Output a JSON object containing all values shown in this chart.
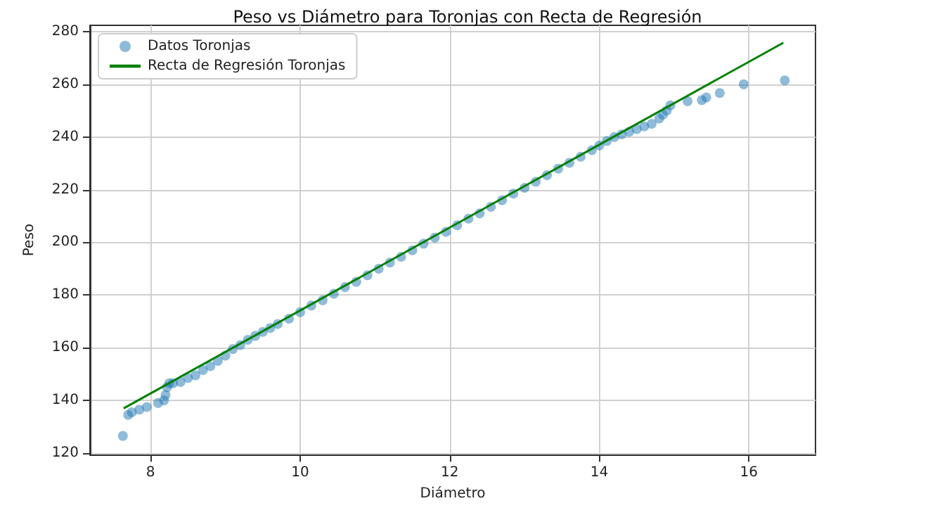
{
  "chart_data": {
    "type": "scatter",
    "title": "Peso vs Diámetro para Toronjas con Recta de Regresión",
    "xlabel": "Diámetro",
    "ylabel": "Peso",
    "series": [
      {
        "name": "Datos Toronjas",
        "color": "#1f77b4",
        "marker": "circle",
        "x": [
          7.63,
          7.7,
          7.75,
          7.85,
          7.95,
          8.1,
          8.18,
          8.2,
          8.22,
          8.25,
          8.3,
          8.4,
          8.5,
          8.6,
          8.7,
          8.8,
          8.9,
          9.0,
          9.1,
          9.2,
          9.3,
          9.4,
          9.5,
          9.6,
          9.7,
          9.85,
          10.0,
          10.15,
          10.3,
          10.45,
          10.6,
          10.75,
          10.9,
          11.05,
          11.2,
          11.35,
          11.5,
          11.65,
          11.8,
          11.95,
          12.1,
          12.25,
          12.4,
          12.55,
          12.7,
          12.85,
          13.0,
          13.15,
          13.3,
          13.45,
          13.6,
          13.75,
          13.9,
          14.0,
          14.1,
          14.2,
          14.3,
          14.4,
          14.5,
          14.6,
          14.7,
          14.8,
          14.85,
          14.9,
          14.95,
          15.18,
          15.37,
          15.43,
          15.61,
          15.93,
          16.48
        ],
        "values": [
          126.5,
          134.5,
          135.5,
          136.5,
          137.5,
          139,
          140,
          142,
          145,
          146.5,
          146.5,
          147,
          148.5,
          149.5,
          151.5,
          153,
          155,
          157,
          159.5,
          161,
          163,
          164.5,
          166,
          167.5,
          169,
          171,
          173.5,
          176,
          178,
          180.5,
          183,
          185,
          187.5,
          190,
          192.3,
          194.5,
          197,
          199.5,
          201.8,
          204,
          206.5,
          209,
          211,
          213.5,
          216,
          218.5,
          220.7,
          223,
          225.5,
          228,
          230.2,
          232.5,
          235,
          236.8,
          238.5,
          240,
          241,
          242,
          243,
          244,
          245,
          247,
          248.5,
          250,
          252,
          253.6,
          254,
          255,
          256.7,
          260,
          261.5
        ]
      },
      {
        "name": "Recta de Regresión Toronjas",
        "type": "line",
        "color": "#008000",
        "x": [
          7.64,
          16.46
        ],
        "values": [
          137,
          275.8
        ]
      }
    ],
    "xlim": [
      7.19,
      16.89
    ],
    "ylim": [
      119.4,
      282.4
    ],
    "xticks": [
      8,
      10,
      12,
      14,
      16
    ],
    "yticks": [
      120,
      140,
      160,
      180,
      200,
      220,
      240,
      260,
      280
    ],
    "grid": true,
    "legend": "top left"
  }
}
